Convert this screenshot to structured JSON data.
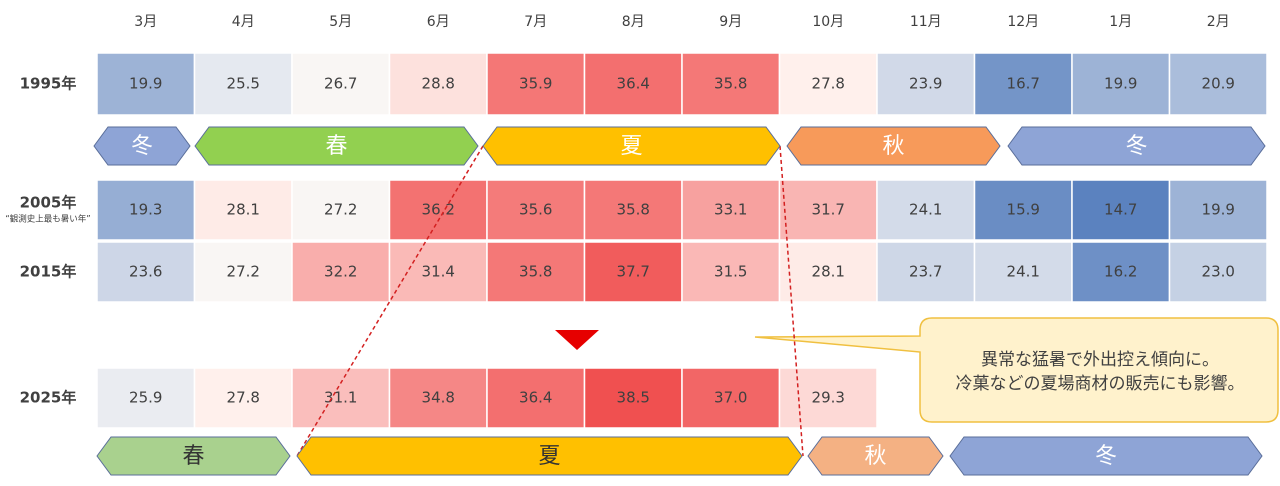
{
  "months": [
    "3月",
    "4月",
    "5月",
    "6月",
    "7月",
    "8月",
    "9月",
    "10月",
    "11月",
    "12月",
    "1月",
    "2月"
  ],
  "rows": [
    {
      "label": "1995年",
      "values": [
        19.9,
        25.5,
        26.7,
        28.8,
        35.9,
        36.4,
        35.8,
        27.8,
        23.9,
        16.7,
        19.9,
        20.9
      ]
    },
    {
      "label": "2005年",
      "note": "“観測史上最も暑い年”",
      "values": [
        19.3,
        28.1,
        27.2,
        36.2,
        35.6,
        35.8,
        33.1,
        31.7,
        24.1,
        15.9,
        14.7,
        19.9
      ]
    },
    {
      "label": "2015年",
      "values": [
        23.6,
        27.2,
        32.2,
        31.4,
        35.8,
        37.7,
        31.5,
        28.1,
        23.7,
        24.1,
        16.2,
        23.0
      ],
      "value_labels": [
        "23.6",
        "27.2",
        "32.2",
        "31.4",
        "35.8",
        "37.7",
        "31.5",
        "28.1",
        "23.7",
        "24.1",
        "16.2",
        "23.0"
      ]
    },
    {
      "label": "2025年",
      "values": [
        25.9,
        27.8,
        31.1,
        34.8,
        36.4,
        38.5,
        37.0,
        29.3
      ],
      "value_labels": [
        "25.9",
        "27.8",
        "31.1",
        "34.8",
        "36.4",
        "38.5",
        "37.0",
        "29.3"
      ]
    }
  ],
  "seasons_top": [
    "冬",
    "春",
    "夏",
    "秋",
    "冬"
  ],
  "seasons_bottom": [
    "春",
    "夏",
    "秋",
    "冬"
  ],
  "callout": {
    "lines": [
      "異常な猛暑で外出控え傾向に。",
      "冷菓などの夏場商材の販売にも影響。"
    ]
  }
}
